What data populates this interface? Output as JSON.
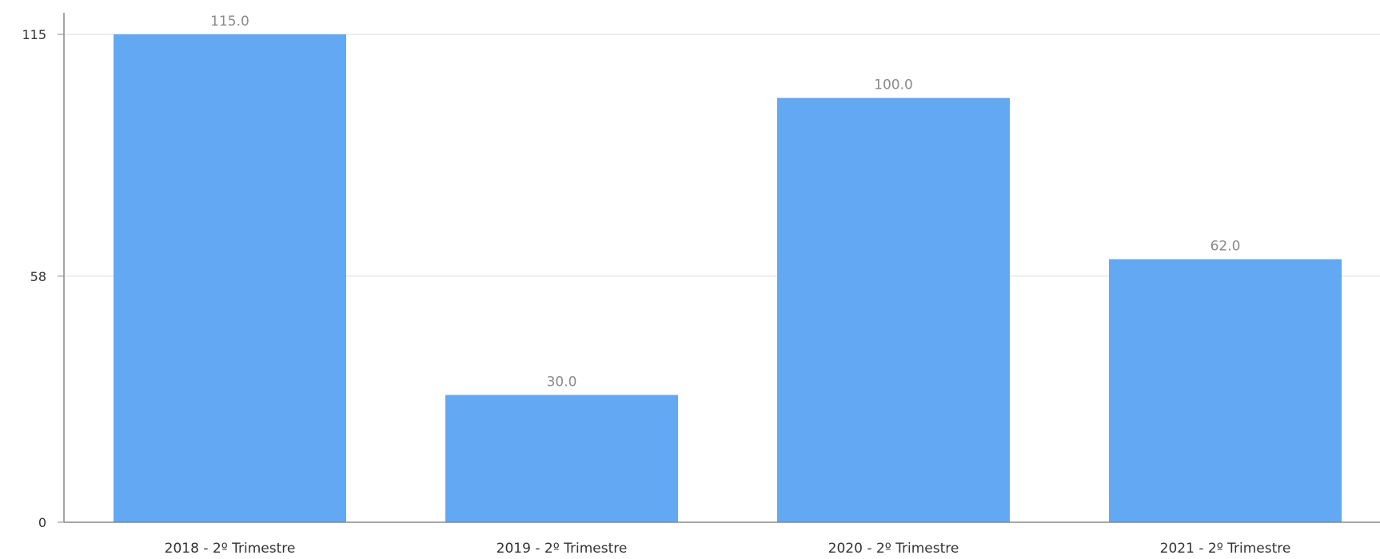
{
  "chart_data": {
    "type": "bar",
    "categories": [
      "2018 - 2º Trimestre",
      "2019 - 2º Trimestre",
      "2020 - 2º Trimestre",
      "2021 - 2º Trimestre"
    ],
    "values": [
      115,
      30,
      100,
      62
    ],
    "data_labels": [
      "115.0",
      "30.0",
      "100.0",
      "62.0"
    ],
    "title": "",
    "xlabel": "",
    "ylabel": "",
    "ylim": [
      0,
      115
    ],
    "yticks": [
      0,
      58,
      115
    ],
    "ytick_labels": [
      "0",
      "58",
      "115"
    ],
    "grid": true,
    "legend": "none"
  },
  "colors": {
    "bar": "#62a8f3",
    "gridline": "#dddddd",
    "axis": "#888888",
    "tick_text": "#333333",
    "data_label_text": "#8a8a8a"
  }
}
